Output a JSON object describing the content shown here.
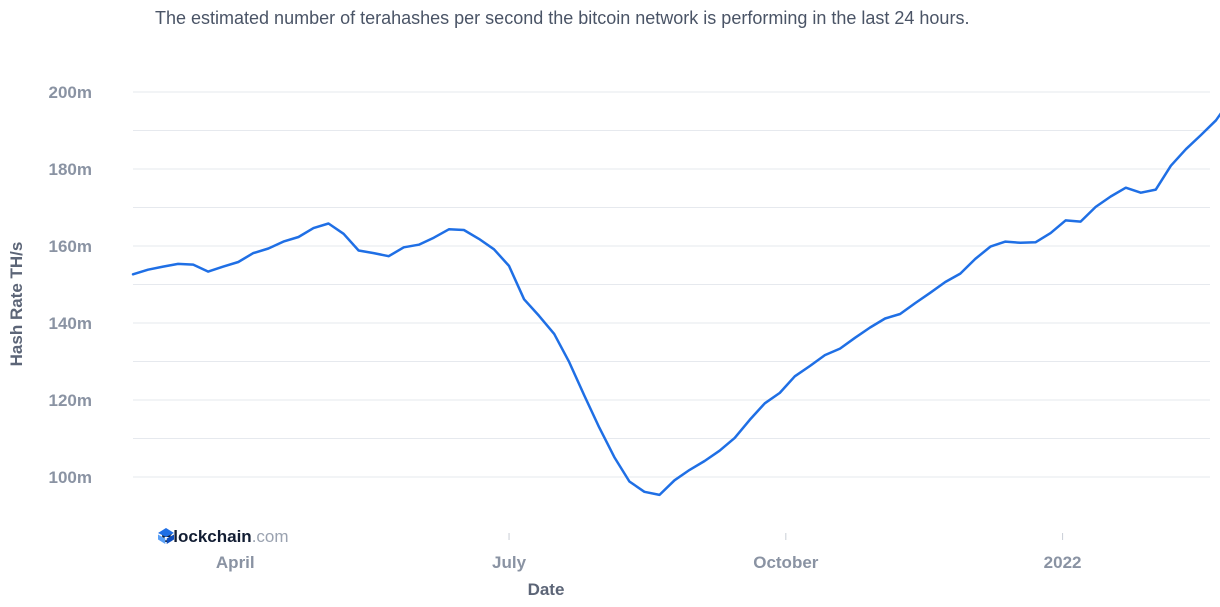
{
  "subtitle": "The estimated number of terahashes per second the bitcoin network is performing in the last 24 hours.",
  "brand": {
    "name": "Blockchain",
    "suffix": ".com",
    "icon": "blockchain-logo-icon"
  },
  "colors": {
    "line": "#1f6fe5",
    "grid": "#e6e9ee",
    "tick_text": "#8a93a3",
    "axis_title": "#5c6577"
  },
  "chart_data": {
    "type": "line",
    "title": "",
    "subtitle": "The estimated number of terahashes per second the bitcoin network is performing in the last 24 hours.",
    "xlabel": "Date",
    "ylabel": "Hash Rate TH/s",
    "x_tick_labels": [
      "April",
      "July",
      "October",
      "2022"
    ],
    "x_tick_dates": [
      "2021-04-01",
      "2021-07-01",
      "2021-10-01",
      "2022-01-01"
    ],
    "y_tick_labels": [
      "100m",
      "120m",
      "140m",
      "160m",
      "180m",
      "200m"
    ],
    "y_tick_values": [
      100000000,
      120000000,
      140000000,
      160000000,
      180000000,
      200000000
    ],
    "xlim": [
      "2021-02-26",
      "2022-02-19"
    ],
    "ylim": [
      90000000,
      200000000
    ],
    "grid": true,
    "legend": "none",
    "series": [
      {
        "values": [
          [
            "2021-02-26",
            152500000
          ],
          [
            "2021-03-03",
            154000000
          ],
          [
            "2021-03-08",
            154500000
          ],
          [
            "2021-03-13",
            155500000
          ],
          [
            "2021-03-18",
            155000000
          ],
          [
            "2021-03-23",
            153500000
          ],
          [
            "2021-03-28",
            154500000
          ],
          [
            "2021-04-02",
            156000000
          ],
          [
            "2021-04-07",
            158000000
          ],
          [
            "2021-04-12",
            159500000
          ],
          [
            "2021-04-17",
            161000000
          ],
          [
            "2021-04-22",
            162500000
          ],
          [
            "2021-04-27",
            164500000
          ],
          [
            "2021-05-02",
            166000000
          ],
          [
            "2021-05-07",
            163000000
          ],
          [
            "2021-05-12",
            159000000
          ],
          [
            "2021-05-17",
            158000000
          ],
          [
            "2021-05-22",
            157500000
          ],
          [
            "2021-05-27",
            159500000
          ],
          [
            "2021-06-01",
            160500000
          ],
          [
            "2021-06-06",
            162000000
          ],
          [
            "2021-06-11",
            164500000
          ],
          [
            "2021-06-16",
            164000000
          ],
          [
            "2021-06-21",
            162000000
          ],
          [
            "2021-06-26",
            159000000
          ],
          [
            "2021-07-01",
            155000000
          ],
          [
            "2021-07-06",
            146000000
          ],
          [
            "2021-07-11",
            142000000
          ],
          [
            "2021-07-16",
            137000000
          ],
          [
            "2021-07-21",
            130000000
          ],
          [
            "2021-07-26",
            121000000
          ],
          [
            "2021-07-31",
            113000000
          ],
          [
            "2021-08-05",
            105000000
          ],
          [
            "2021-08-10",
            99000000
          ],
          [
            "2021-08-15",
            96000000
          ],
          [
            "2021-08-20",
            95500000
          ],
          [
            "2021-08-25",
            99000000
          ],
          [
            "2021-08-30",
            102000000
          ],
          [
            "2021-09-04",
            104000000
          ],
          [
            "2021-09-09",
            107000000
          ],
          [
            "2021-09-14",
            110000000
          ],
          [
            "2021-09-19",
            115000000
          ],
          [
            "2021-09-24",
            119000000
          ],
          [
            "2021-09-29",
            122000000
          ],
          [
            "2021-10-04",
            126000000
          ],
          [
            "2021-10-09",
            129000000
          ],
          [
            "2021-10-14",
            131500000
          ],
          [
            "2021-10-19",
            133500000
          ],
          [
            "2021-10-24",
            136000000
          ],
          [
            "2021-10-29",
            139000000
          ],
          [
            "2021-11-03",
            141000000
          ],
          [
            "2021-11-08",
            142500000
          ],
          [
            "2021-11-13",
            145000000
          ],
          [
            "2021-11-18",
            148000000
          ],
          [
            "2021-11-23",
            150500000
          ],
          [
            "2021-11-28",
            153000000
          ],
          [
            "2021-12-03",
            156500000
          ],
          [
            "2021-12-08",
            160000000
          ],
          [
            "2021-12-13",
            161000000
          ],
          [
            "2021-12-18",
            161000000
          ],
          [
            "2021-12-23",
            160800000
          ],
          [
            "2021-12-28",
            163500000
          ],
          [
            "2022-01-02",
            166500000
          ],
          [
            "2022-01-07",
            166500000
          ],
          [
            "2022-01-12",
            170000000
          ],
          [
            "2022-01-17",
            173000000
          ],
          [
            "2022-01-22",
            175000000
          ],
          [
            "2022-01-27",
            174000000
          ],
          [
            "2022-02-01",
            174500000
          ],
          [
            "2022-02-06",
            181000000
          ],
          [
            "2022-02-11",
            185000000
          ],
          [
            "2022-02-16",
            189000000
          ],
          [
            "2022-02-21",
            192500000
          ],
          [
            "2022-02-23",
            195000000
          ]
        ]
      }
    ]
  }
}
